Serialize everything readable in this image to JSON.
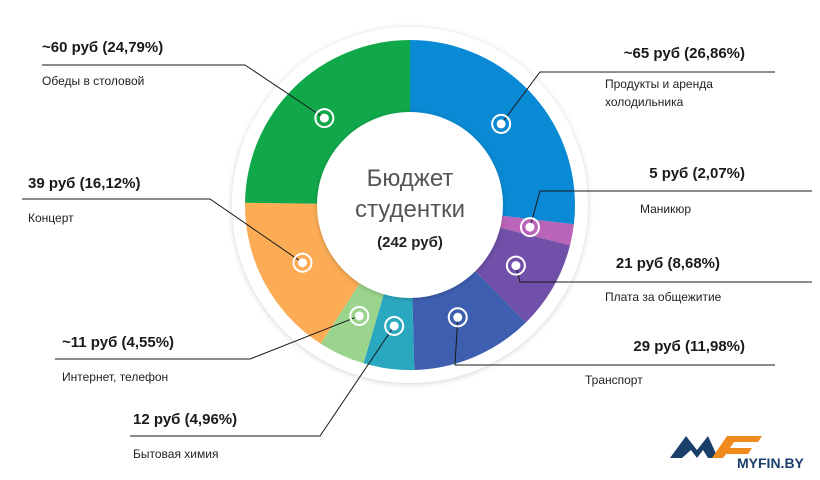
{
  "chart_data": {
    "type": "pie",
    "title_lines": [
      "Бюджет",
      "студентки"
    ],
    "total_label": "(242 руб)",
    "slices": [
      {
        "value_label": "~65 руб (26,86%)",
        "name_lines": [
          "Продукты и аренда",
          "холодильника"
        ],
        "value": 65,
        "percent": 26.86,
        "color": "#0a8ad4"
      },
      {
        "value_label": "5 руб (2,07%)",
        "name_lines": [
          "Маникюр"
        ],
        "value": 5,
        "percent": 2.07,
        "color": "#b964b8"
      },
      {
        "value_label": "21 руб (8,68%)",
        "name_lines": [
          "Плата за общежитие"
        ],
        "value": 21,
        "percent": 8.68,
        "color": "#7050a8"
      },
      {
        "value_label": "29 руб (11,98%)",
        "name_lines": [
          "Транспорт"
        ],
        "value": 29,
        "percent": 11.98,
        "color": "#3e5fb0"
      },
      {
        "value_label": "12 руб (4,96%)",
        "name_lines": [
          "Бытовая химия"
        ],
        "value": 12,
        "percent": 4.96,
        "color": "#2aa8c0"
      },
      {
        "value_label": "~11 руб (4,55%)",
        "name_lines": [
          "Интернет, телефон"
        ],
        "value": 11,
        "percent": 4.55,
        "color": "#9bd48c"
      },
      {
        "value_label": "39 руб (16,12%)",
        "name_lines": [
          "Концерт"
        ],
        "value": 39,
        "percent": 16.12,
        "color": "#fbac55"
      },
      {
        "value_label": "~60 руб (24,79%)",
        "name_lines": [
          "Обеды в столовой"
        ],
        "value": 60,
        "percent": 24.79,
        "color": "#11a84a"
      }
    ]
  },
  "logo": {
    "text": "MYFIN.BY",
    "colors": {
      "primary": "#1b3f6b",
      "accent": "#f08a1c"
    }
  }
}
